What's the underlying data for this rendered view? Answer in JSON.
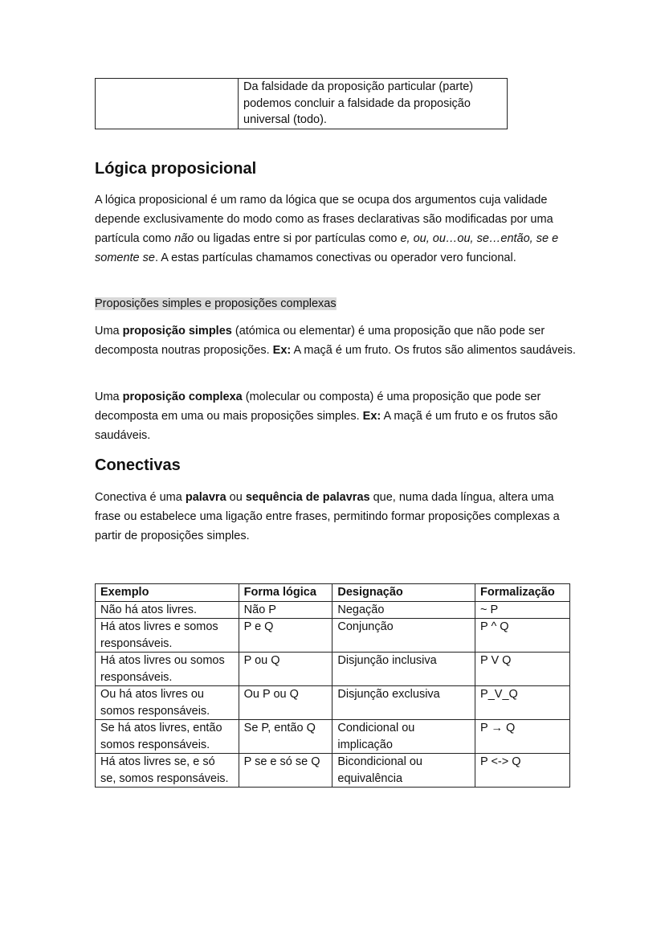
{
  "top_table": {
    "right_cell": "Da falsidade da proposição particular (parte) podemos concluir a falsidade da proposição universal (todo)."
  },
  "section1": {
    "title": "Lógica proposicional",
    "p1": [
      "A lógica proposicional é um ramo da lógica que se ocupa dos argumentos cuja validade depende exclusivamente do modo como as frases declarativas são modificadas por uma partícula como ",
      "não",
      " ou ligadas entre si por partículas como ",
      "e, ou, ou…ou, se…então, se e somente se",
      ". A estas partículas chamamos conectivas ou operador vero funcional."
    ],
    "subheading": "Proposições simples e proposições complexas",
    "p2": [
      "Uma ",
      "proposição simples",
      " (atómica ou elementar) é uma proposição que não pode ser decomposta noutras proposições. ",
      "Ex:",
      " A maçã é um fruto. Os frutos são alimentos saudáveis."
    ],
    "p3": [
      "Uma ",
      "proposição complexa",
      " (molecular ou composta) é uma proposição que pode ser decomposta em uma ou mais proposições simples. ",
      "Ex:",
      " A maçã é um fruto e os frutos são saudáveis."
    ]
  },
  "section2": {
    "title": "Conectivas",
    "p1": [
      "Conectiva é uma ",
      "palavra",
      " ou ",
      "sequência de palavras",
      " que, numa dada língua, altera uma frase ou estabelece uma ligação entre frases, permitindo formar proposições complexas a partir de proposições simples."
    ],
    "table": {
      "headers": [
        "Exemplo",
        "Forma lógica",
        "Designação",
        "Formalização"
      ],
      "rows": [
        [
          "Não há atos livres.",
          "Não P",
          "Negação",
          "~ P"
        ],
        [
          "Há atos livres e somos responsáveis.",
          "P e Q",
          "Conjunção",
          "P ^ Q"
        ],
        [
          "Há atos livres ou somos responsáveis.",
          "P ou Q",
          "Disjunção inclusiva",
          "P V Q"
        ],
        [
          "Ou há atos livres ou somos responsáveis.",
          "Ou P ou Q",
          "Disjunção exclusiva",
          "P_V_Q"
        ],
        [
          "Se há atos livres, então somos responsáveis.",
          "Se P, então Q",
          "Condicional ou implicação",
          "P → Q"
        ],
        [
          "Há atos livres se, e só se, somos responsáveis.",
          "P se e só se Q",
          "Bicondicional ou equivalência",
          "P <-> Q"
        ]
      ]
    }
  }
}
